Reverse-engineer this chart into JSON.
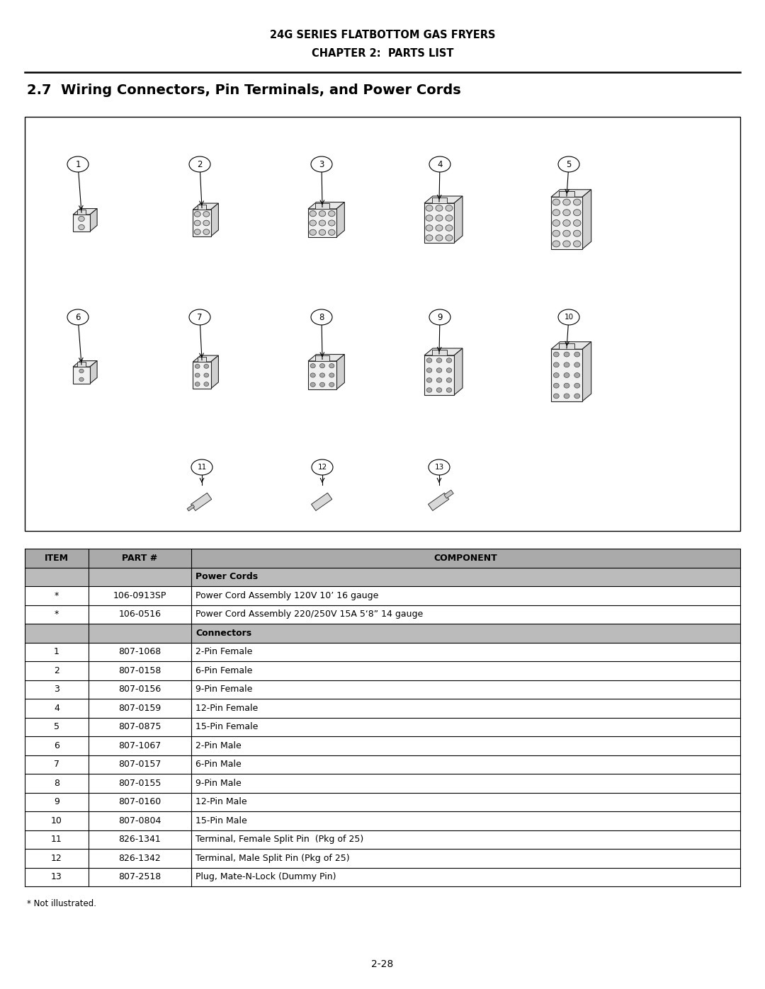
{
  "title_line1": "24G SERIES FLATBOTTOM GAS FRYERS",
  "title_line2": "CHAPTER 2:  PARTS LIST",
  "section_title": "2.7  Wiring Connectors, Pin Terminals, and Power Cords",
  "page_number": "2-28",
  "not_illustrated": "* Not illustrated.",
  "table_headers": [
    "ITEM",
    "PART #",
    "COMPONENT"
  ],
  "table_rows": [
    [
      "",
      "",
      "Power Cords",
      "header"
    ],
    [
      "*",
      "106-0913SP",
      "Power Cord Assembly 120V 10’ 16 gauge",
      "data"
    ],
    [
      "*",
      "106-0516",
      "Power Cord Assembly 220/250V 15A 5‘8” 14 gauge",
      "data"
    ],
    [
      "",
      "",
      "Connectors",
      "header"
    ],
    [
      "1",
      "807-1068",
      "2-Pin Female",
      "data"
    ],
    [
      "2",
      "807-0158",
      "6-Pin Female",
      "data"
    ],
    [
      "3",
      "807-0156",
      "9-Pin Female",
      "data"
    ],
    [
      "4",
      "807-0159",
      "12-Pin Female",
      "data"
    ],
    [
      "5",
      "807-0875",
      "15-Pin Female",
      "data"
    ],
    [
      "6",
      "807-1067",
      "2-Pin Male",
      "data"
    ],
    [
      "7",
      "807-0157",
      "6-Pin Male",
      "data"
    ],
    [
      "8",
      "807-0155",
      "9-Pin Male",
      "data"
    ],
    [
      "9",
      "807-0160",
      "12-Pin Male",
      "data"
    ],
    [
      "10",
      "807-0804",
      "15-Pin Male",
      "data"
    ],
    [
      "11",
      "826-1341",
      "Terminal, Female Split Pin  (Pkg of 25)",
      "data"
    ],
    [
      "12",
      "826-1342",
      "Terminal, Male Split Pin (Pkg of 25)",
      "data"
    ],
    [
      "13",
      "807-2518",
      "Plug, Mate-N-Lock (Dummy Pin)",
      "data"
    ]
  ],
  "bg_color": "#ffffff",
  "title_fontsize": 10.5,
  "section_fontsize": 14,
  "table_fontsize": 9
}
